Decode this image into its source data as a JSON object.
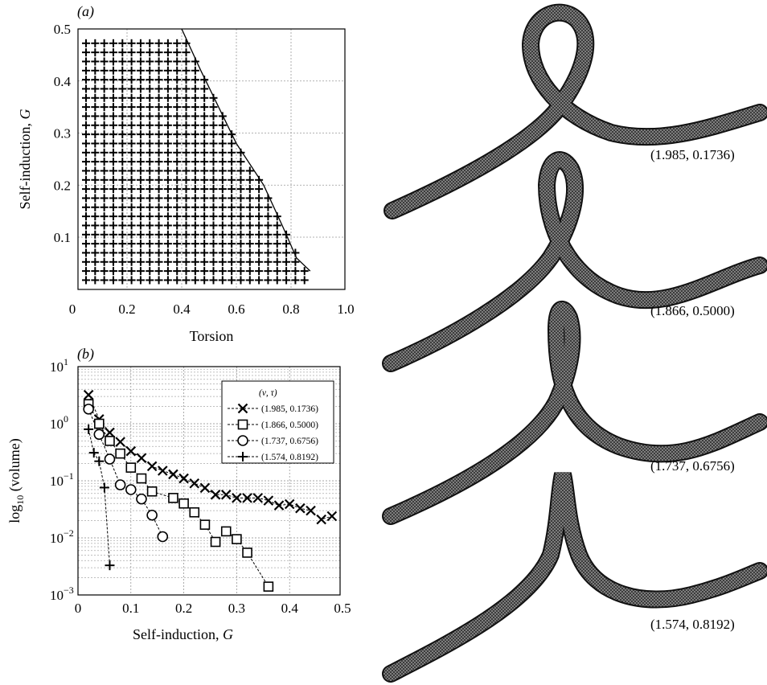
{
  "panels": {
    "a": "(a)",
    "b": "(b)"
  },
  "chart_data": [
    {
      "type": "scatter",
      "panel": "a",
      "xlabel": "Torsion",
      "ylabel_prefix": "Self-induction, ",
      "ylabel_var": "G",
      "xlim": [
        0,
        1.0
      ],
      "ylim": [
        0.012,
        0.5
      ],
      "x_ticks": [
        "0",
        "0.2",
        "0.4",
        "0.6",
        "0.8",
        "1.0"
      ],
      "x_tick_values": [
        0,
        0.2,
        0.4,
        0.6,
        0.8,
        1.0
      ],
      "y_ticks": [
        "0.1",
        "0.2",
        "0.3",
        "0.4",
        "0.5"
      ],
      "y_tick_values": [
        0.1,
        0.2,
        0.3,
        0.4,
        0.5
      ],
      "grid": true,
      "marker": "+",
      "grid_points": {
        "x_start": 0.05,
        "x_step": 0.0333,
        "x_count": 25,
        "y_start": 0.0175,
        "y_step": 0.0175,
        "y_count": 27
      },
      "boundary": {
        "x": [
          0.4,
          0.47,
          0.6,
          0.7,
          0.77,
          0.82,
          0.87
        ],
        "y": [
          0.5,
          0.42,
          0.28,
          0.2,
          0.12,
          0.06,
          0.035
        ]
      }
    },
    {
      "type": "line",
      "panel": "b",
      "xlabel_prefix": "Self-induction, ",
      "xlabel_var": "G",
      "ylabel": "log10 (volume)",
      "ylabel_base": "log",
      "ylabel_sub": "10",
      "ylabel_tail": " (volume)",
      "xlim": [
        0,
        0.5
      ],
      "ylim": [
        0.001,
        10
      ],
      "yscale": "log",
      "x_ticks": [
        "0",
        "0.1",
        "0.2",
        "0.3",
        "0.4",
        "0.5"
      ],
      "x_tick_values": [
        0,
        0.1,
        0.2,
        0.3,
        0.4,
        0.5
      ],
      "y_ticks": [
        {
          "base": "10",
          "exp": "1"
        },
        {
          "base": "10",
          "exp": "0"
        },
        {
          "base": "10",
          "exp": "−1"
        },
        {
          "base": "10",
          "exp": "−2"
        },
        {
          "base": "10",
          "exp": "−3"
        }
      ],
      "y_tick_values": [
        10,
        1,
        0.1,
        0.01,
        0.001
      ],
      "grid": true,
      "legend_title": "(ν, τ)",
      "legend_position": "top-right",
      "series": [
        {
          "name": "(1.985, 0.1736)",
          "marker": "x",
          "x": [
            0.02,
            0.04,
            0.06,
            0.08,
            0.1,
            0.12,
            0.14,
            0.16,
            0.18,
            0.2,
            0.22,
            0.24,
            0.26,
            0.28,
            0.3,
            0.32,
            0.34,
            0.36,
            0.38,
            0.4,
            0.42,
            0.44,
            0.46,
            0.48
          ],
          "y": [
            3.2,
            1.2,
            0.7,
            0.48,
            0.33,
            0.25,
            0.18,
            0.15,
            0.13,
            0.11,
            0.09,
            0.075,
            0.057,
            0.057,
            0.05,
            0.05,
            0.05,
            0.045,
            0.037,
            0.039,
            0.033,
            0.03,
            0.021,
            0.024
          ]
        },
        {
          "name": "(1.866, 0.5000)",
          "marker": "square",
          "x": [
            0.02,
            0.04,
            0.06,
            0.08,
            0.1,
            0.12,
            0.14,
            0.18,
            0.2,
            0.22,
            0.24,
            0.26,
            0.28,
            0.3,
            0.32,
            0.36
          ],
          "y": [
            2.2,
            1.0,
            0.5,
            0.3,
            0.17,
            0.11,
            0.065,
            0.05,
            0.04,
            0.028,
            0.017,
            0.0085,
            0.013,
            0.0095,
            0.0055,
            0.0014
          ]
        },
        {
          "name": "(1.737, 0.6756)",
          "marker": "circle",
          "x": [
            0.02,
            0.04,
            0.06,
            0.08,
            0.1,
            0.12,
            0.14,
            0.16
          ],
          "y": [
            1.8,
            0.65,
            0.24,
            0.085,
            0.07,
            0.048,
            0.025,
            0.0105
          ]
        },
        {
          "name": "(1.574, 0.8192)",
          "marker": "plus",
          "x": [
            0.02,
            0.03,
            0.04,
            0.05,
            0.06
          ],
          "y": [
            0.8,
            0.31,
            0.22,
            0.076,
            0.0033
          ]
        }
      ]
    }
  ],
  "tubes": [
    {
      "caption": "(1.985, 0.1736)"
    },
    {
      "caption": "(1.866, 0.5000)"
    },
    {
      "caption": "(1.737, 0.6756)"
    },
    {
      "caption": "(1.574, 0.8192)"
    }
  ]
}
